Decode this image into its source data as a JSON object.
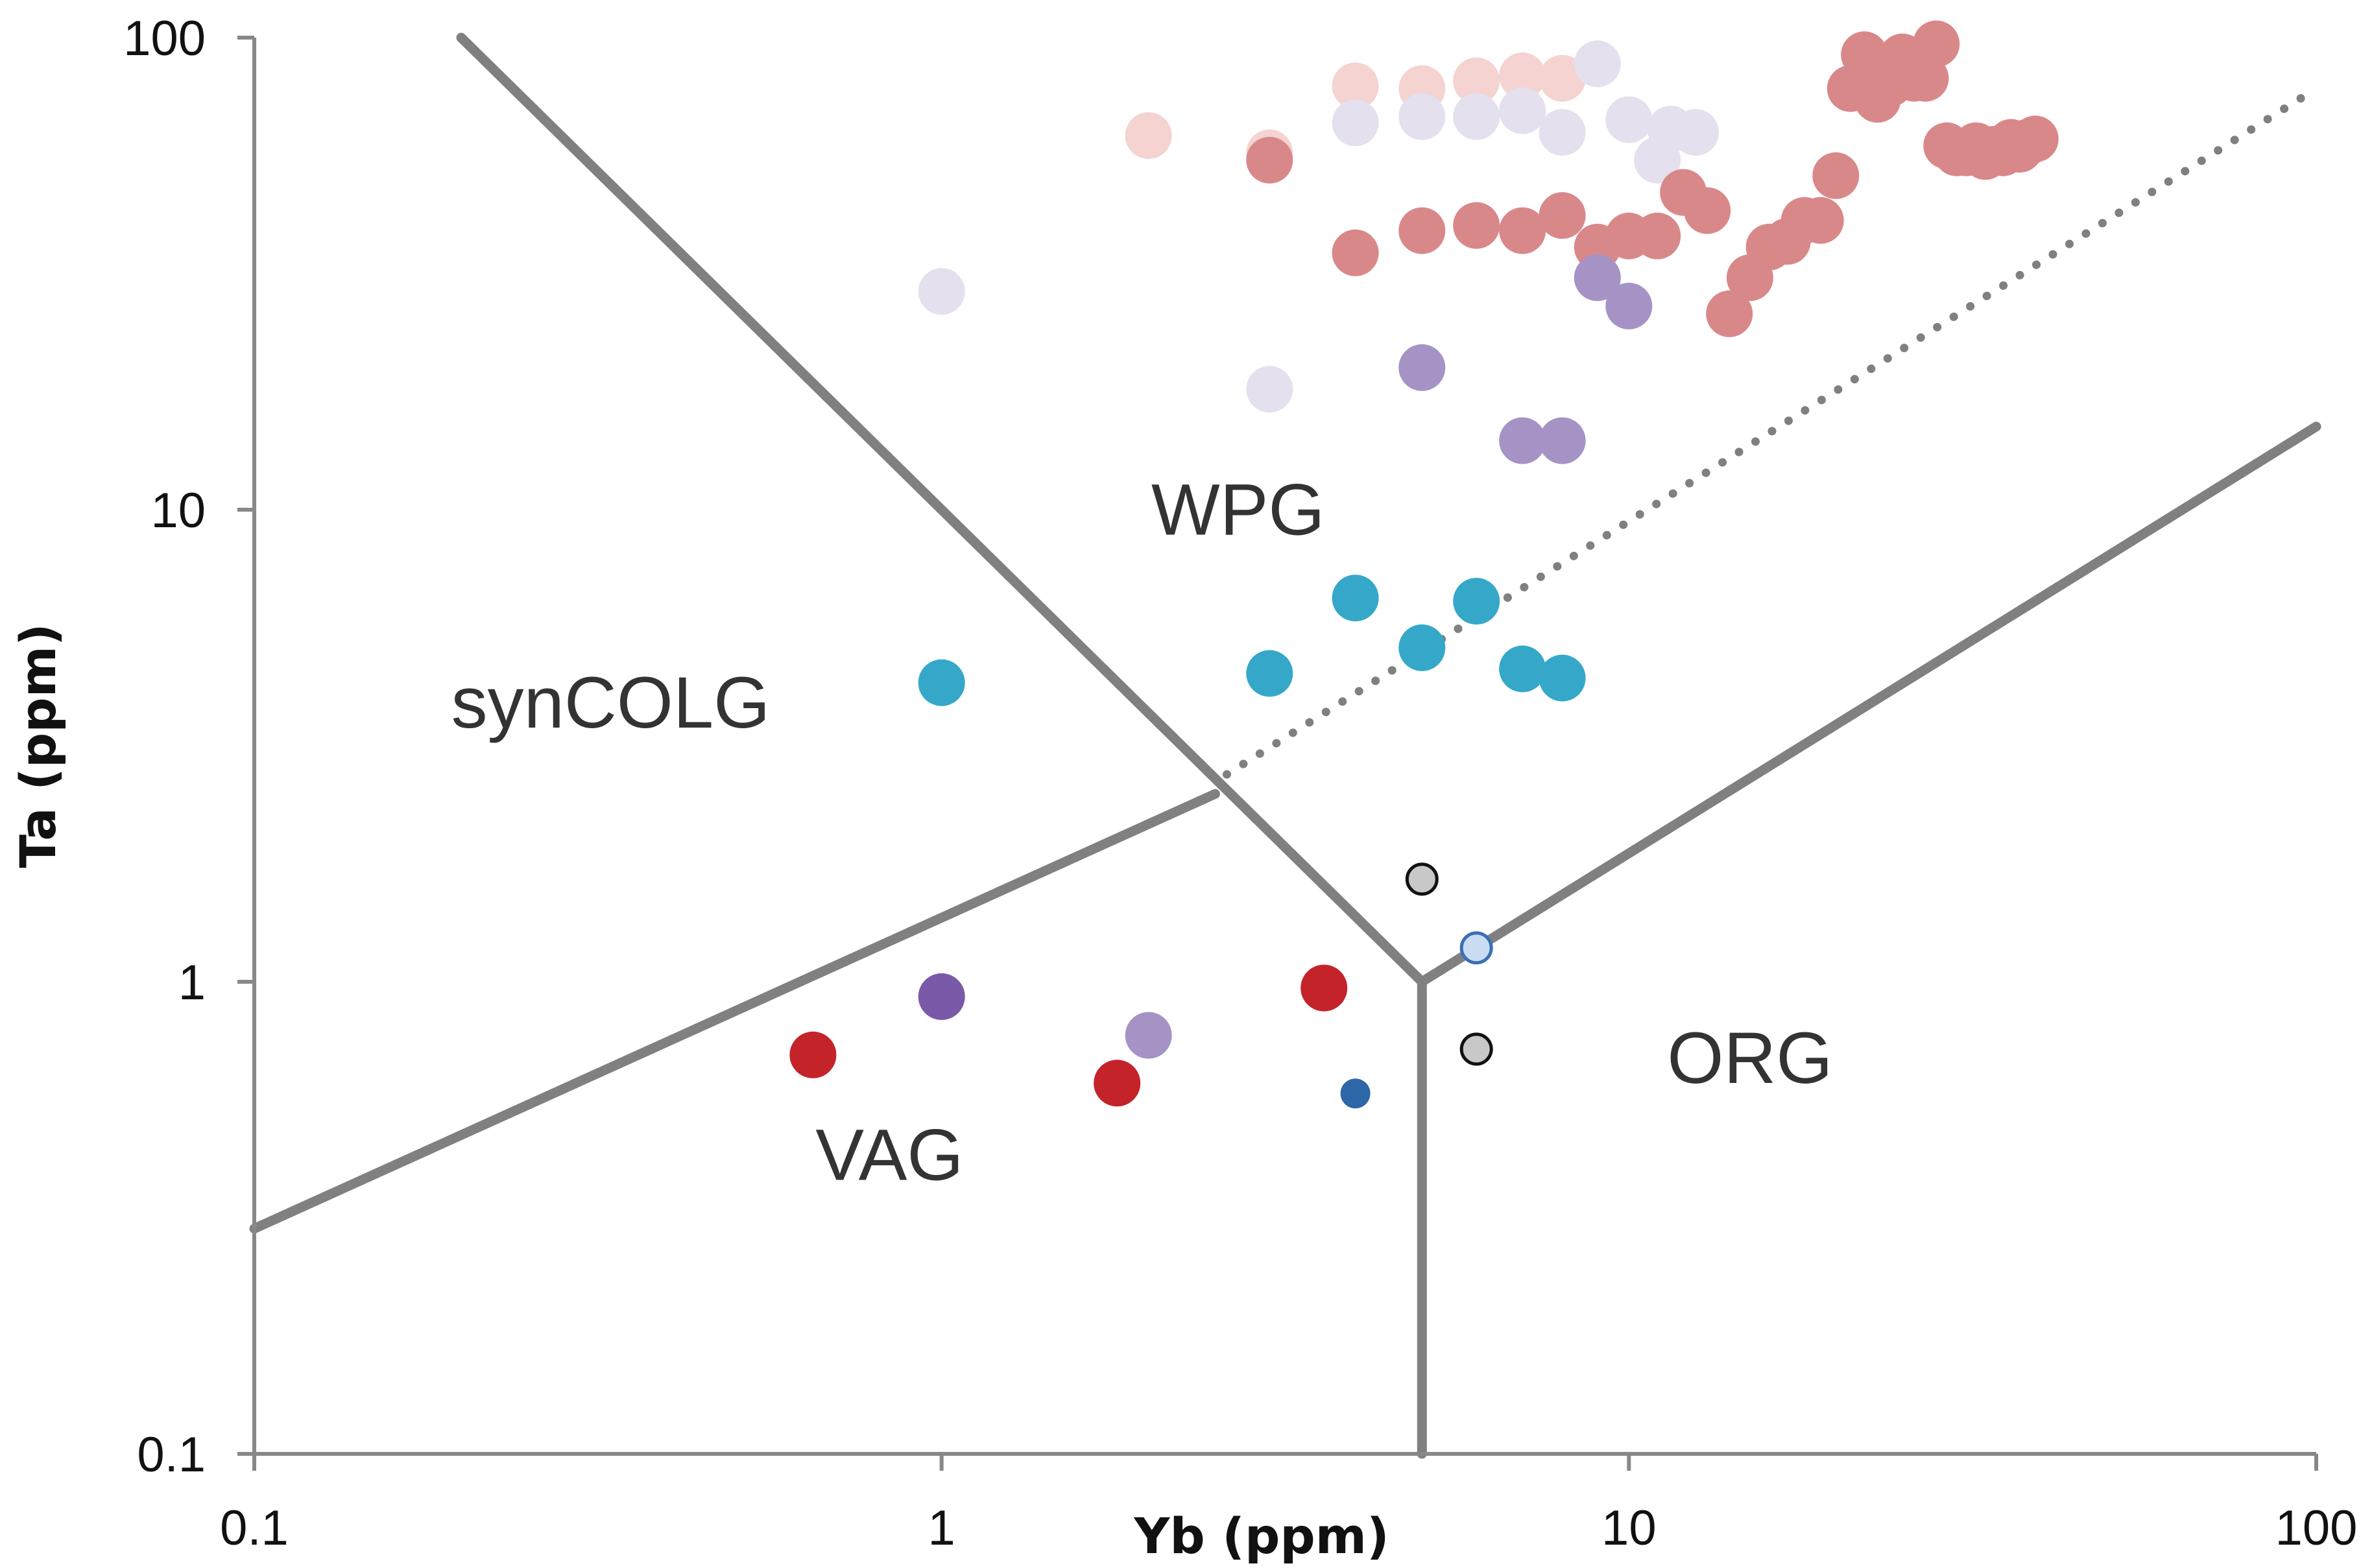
{
  "chart_data": {
    "type": "scatter",
    "title": "",
    "xlabel": "Yb (ppm)",
    "ylabel": "Ta (ppm)",
    "xscale": "log",
    "yscale": "log",
    "xlim": [
      0.1,
      100
    ],
    "ylim": [
      0.1,
      100
    ],
    "grid": false,
    "x_ticks": [
      {
        "value": 0.1,
        "label": "0.1"
      },
      {
        "value": 1,
        "label": "1"
      },
      {
        "value": 10,
        "label": "10"
      },
      {
        "value": 100,
        "label": "100"
      }
    ],
    "y_ticks": [
      {
        "value": 0.1,
        "label": "0.1"
      },
      {
        "value": 1,
        "label": "1"
      },
      {
        "value": 10,
        "label": "10"
      },
      {
        "value": 100,
        "label": "100"
      }
    ],
    "colors": {
      "boundary": "#808080",
      "axis": "#888888"
    },
    "boundaries": [
      {
        "name": "wpg-syncolg-vag-boundary",
        "style": "solid",
        "points": [
          [
            0.2,
            100
          ],
          [
            5.0,
            1.0
          ]
        ]
      },
      {
        "name": "vag-org-boundary",
        "style": "solid",
        "points": [
          [
            5.0,
            1.0
          ],
          [
            5.0,
            0.1
          ]
        ]
      },
      {
        "name": "wpg-org-boundary",
        "style": "solid",
        "points": [
          [
            5.0,
            1.0
          ],
          [
            100,
            15
          ]
        ]
      },
      {
        "name": "syncolg-vag-boundary",
        "style": "solid",
        "points": [
          [
            0.1,
            0.3
          ],
          [
            2.5,
            2.5
          ]
        ]
      },
      {
        "name": "wpg-dotted-boundary",
        "style": "dotted",
        "points": [
          [
            2.6,
            2.75
          ],
          [
            100,
            78
          ]
        ]
      }
    ],
    "regions": [
      {
        "label": "WPG",
        "x": 2.7,
        "y": 10
      },
      {
        "label": "synCOLG",
        "x": 0.33,
        "y": 3.9
      },
      {
        "label": "VAG",
        "x": 0.84,
        "y": 0.43
      },
      {
        "label": "ORG",
        "x": 15.0,
        "y": 0.69
      }
    ],
    "series": [
      {
        "name": "light-pink-group",
        "color": "#f4d3d1",
        "size": "large",
        "points": [
          [
            2.0,
            62
          ],
          [
            3.0,
            57
          ],
          [
            4.0,
            79
          ],
          [
            5.0,
            78
          ],
          [
            6.0,
            81
          ],
          [
            7.0,
            83
          ],
          [
            8.0,
            82
          ]
        ]
      },
      {
        "name": "pale-lavender-group",
        "color": "#e5e0ee",
        "size": "large",
        "points": [
          [
            1.0,
            29
          ],
          [
            3.0,
            18
          ],
          [
            4.0,
            66
          ],
          [
            5.0,
            68
          ],
          [
            6.0,
            68
          ],
          [
            7.0,
            70
          ],
          [
            8.0,
            63
          ],
          [
            9.0,
            88
          ],
          [
            10.0,
            67
          ],
          [
            11.0,
            55
          ],
          [
            11.5,
            64
          ],
          [
            12.5,
            63
          ]
        ]
      },
      {
        "name": "salmon-group",
        "color": "#d9888a",
        "size": "large",
        "points": [
          [
            3.0,
            55
          ],
          [
            4.0,
            35
          ],
          [
            5.0,
            39
          ],
          [
            6.0,
            40
          ],
          [
            7.0,
            39
          ],
          [
            8.0,
            42
          ],
          [
            9.0,
            36
          ],
          [
            10.0,
            38
          ],
          [
            11.0,
            38
          ],
          [
            12.0,
            47
          ],
          [
            13.0,
            43
          ],
          [
            14.0,
            26
          ],
          [
            15.0,
            31
          ],
          [
            16.0,
            36
          ],
          [
            17.0,
            37
          ],
          [
            18.0,
            41
          ],
          [
            19.0,
            41
          ],
          [
            20.0,
            51
          ],
          [
            21.0,
            78
          ],
          [
            22.0,
            92
          ],
          [
            23.0,
            74
          ],
          [
            24.0,
            80
          ],
          [
            25.0,
            91
          ],
          [
            26.0,
            82
          ],
          [
            27.0,
            82
          ],
          [
            28.0,
            97
          ],
          [
            29.0,
            59
          ],
          [
            30.0,
            57
          ],
          [
            31.0,
            57
          ],
          [
            32.0,
            59
          ],
          [
            33.0,
            56
          ],
          [
            34.0,
            58
          ],
          [
            35.0,
            57
          ],
          [
            36.0,
            60
          ],
          [
            37.0,
            58
          ],
          [
            38.0,
            60
          ],
          [
            39.0,
            61
          ]
        ]
      },
      {
        "name": "lavender-group",
        "color": "#a593c6",
        "size": "large",
        "points": [
          [
            2.0,
            0.77
          ],
          [
            5.0,
            20
          ],
          [
            7.0,
            14
          ],
          [
            8.0,
            14
          ],
          [
            9.0,
            31
          ],
          [
            10.0,
            27
          ]
        ]
      },
      {
        "name": "teal-group",
        "color": "#35a8c9",
        "size": "large",
        "points": [
          [
            1.0,
            4.3
          ],
          [
            3.0,
            4.5
          ],
          [
            4.0,
            6.5
          ],
          [
            5.0,
            5.1
          ],
          [
            6.0,
            6.4
          ],
          [
            7.0,
            4.6
          ],
          [
            8.0,
            4.4
          ]
        ]
      },
      {
        "name": "red-group",
        "color": "#c4232a",
        "size": "large",
        "points": [
          [
            0.65,
            0.7
          ],
          [
            1.8,
            0.61
          ],
          [
            3.6,
            0.97
          ]
        ]
      },
      {
        "name": "purple-group",
        "color": "#7a5aa8",
        "size": "large",
        "points": [
          [
            1.0,
            0.93
          ]
        ]
      },
      {
        "name": "dark-blue-group",
        "color": "#2e67a8",
        "size": "small",
        "points": [
          [
            4.0,
            0.58
          ]
        ]
      },
      {
        "name": "grey-outlined-group",
        "color": "#c8c8c8",
        "stroke": "#111111",
        "size": "small",
        "points": [
          [
            5.0,
            1.65
          ],
          [
            6.0,
            0.72
          ]
        ]
      },
      {
        "name": "light-blue-outlined-group",
        "color": "#c9dcf2",
        "stroke": "#3a6fb5",
        "size": "small",
        "points": [
          [
            6.0,
            1.18
          ]
        ]
      }
    ]
  }
}
